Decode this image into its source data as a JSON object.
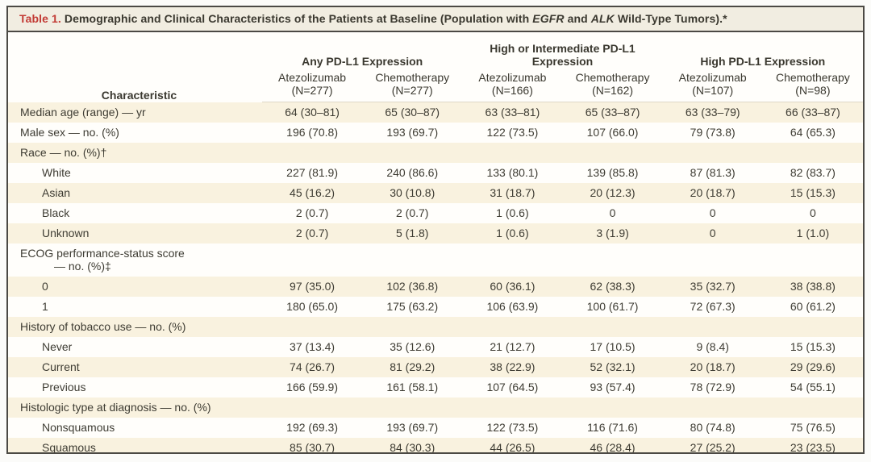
{
  "title": {
    "label": "Table 1.",
    "parts": [
      "Demographic and Clinical Characteristics of the Patients at Baseline (Population with ",
      "EGFR",
      " and ",
      "ALK",
      " Wild-Type Tumors).*"
    ]
  },
  "table": {
    "characteristic_header": "Characteristic",
    "groups": [
      {
        "label": "Any PD-L1 Expression",
        "sub": [
          {
            "drug": "Atezolizumab",
            "n": "(N=277)"
          },
          {
            "drug": "Chemotherapy",
            "n": "(N=277)"
          }
        ]
      },
      {
        "label": "High or Intermediate PD-L1 Expression",
        "sub": [
          {
            "drug": "Atezolizumab",
            "n": "(N=166)"
          },
          {
            "drug": "Chemotherapy",
            "n": "(N=162)"
          }
        ]
      },
      {
        "label": "High PD-L1 Expression",
        "sub": [
          {
            "drug": "Atezolizumab",
            "n": "(N=107)"
          },
          {
            "drug": "Chemotherapy",
            "n": "(N=98)"
          }
        ]
      }
    ],
    "rows": [
      {
        "label": "Median age (range) — yr",
        "indent": 0,
        "values": [
          "64 (30–81)",
          "65 (30–87)",
          "63 (33–81)",
          "65 (33–87)",
          "63 (33–79)",
          "66 (33–87)"
        ]
      },
      {
        "label": "Male sex — no. (%)",
        "indent": 0,
        "values": [
          "196 (70.8)",
          "193 (69.7)",
          "122 (73.5)",
          "107 (66.0)",
          "79 (73.8)",
          "64 (65.3)"
        ]
      },
      {
        "label": "Race — no. (%)†",
        "indent": 0,
        "values": [
          "",
          "",
          "",
          "",
          "",
          ""
        ]
      },
      {
        "label": "White",
        "indent": 1,
        "values": [
          "227 (81.9)",
          "240 (86.6)",
          "133 (80.1)",
          "139 (85.8)",
          "87 (81.3)",
          "82 (83.7)"
        ]
      },
      {
        "label": "Asian",
        "indent": 1,
        "values": [
          "45 (16.2)",
          "30 (10.8)",
          "31 (18.7)",
          "20 (12.3)",
          "20 (18.7)",
          "15 (15.3)"
        ]
      },
      {
        "label": "Black",
        "indent": 1,
        "values": [
          "2 (0.7)",
          "2 (0.7)",
          "1 (0.6)",
          "0",
          "0",
          "0"
        ]
      },
      {
        "label": "Unknown",
        "indent": 1,
        "values": [
          "2 (0.7)",
          "5 (1.8)",
          "1 (0.6)",
          "3 (1.9)",
          "0",
          "1 (1.0)"
        ]
      },
      {
        "label": "ECOG performance-status score",
        "label2": "— no. (%)‡",
        "indent": 0,
        "values": [
          "",
          "",
          "",
          "",
          "",
          ""
        ]
      },
      {
        "label": "0",
        "indent": 1,
        "values": [
          "97 (35.0)",
          "102 (36.8)",
          "60 (36.1)",
          "62 (38.3)",
          "35 (32.7)",
          "38 (38.8)"
        ]
      },
      {
        "label": "1",
        "indent": 1,
        "values": [
          "180 (65.0)",
          "175 (63.2)",
          "106 (63.9)",
          "100 (61.7)",
          "72 (67.3)",
          "60 (61.2)"
        ]
      },
      {
        "label": "History of tobacco use — no. (%)",
        "indent": 0,
        "values": [
          "",
          "",
          "",
          "",
          "",
          ""
        ]
      },
      {
        "label": "Never",
        "indent": 1,
        "values": [
          "37 (13.4)",
          "35 (12.6)",
          "21 (12.7)",
          "17 (10.5)",
          "9 (8.4)",
          "15 (15.3)"
        ]
      },
      {
        "label": "Current",
        "indent": 1,
        "values": [
          "74 (26.7)",
          "81 (29.2)",
          "38 (22.9)",
          "52 (32.1)",
          "20 (18.7)",
          "29 (29.6)"
        ]
      },
      {
        "label": "Previous",
        "indent": 1,
        "values": [
          "166 (59.9)",
          "161 (58.1)",
          "107 (64.5)",
          "93 (57.4)",
          "78 (72.9)",
          "54 (55.1)"
        ]
      },
      {
        "label": "Histologic type at diagnosis — no. (%)",
        "indent": 0,
        "values": [
          "",
          "",
          "",
          "",
          "",
          ""
        ]
      },
      {
        "label": "Nonsquamous",
        "indent": 1,
        "values": [
          "192 (69.3)",
          "193 (69.7)",
          "122 (73.5)",
          "116 (71.6)",
          "80 (74.8)",
          "75 (76.5)"
        ]
      },
      {
        "label": "Squamous",
        "indent": 1,
        "values": [
          "85 (30.7)",
          "84 (30.3)",
          "44 (26.5)",
          "46 (28.4)",
          "27 (25.2)",
          "23 (23.5)"
        ]
      }
    ]
  },
  "colors": {
    "accent_red": "#c23a34",
    "stripe_cream": "#f9f2df",
    "title_bar_bg": "#f1ede1",
    "border_dark": "#4b4944",
    "text": "#3e3c33"
  }
}
